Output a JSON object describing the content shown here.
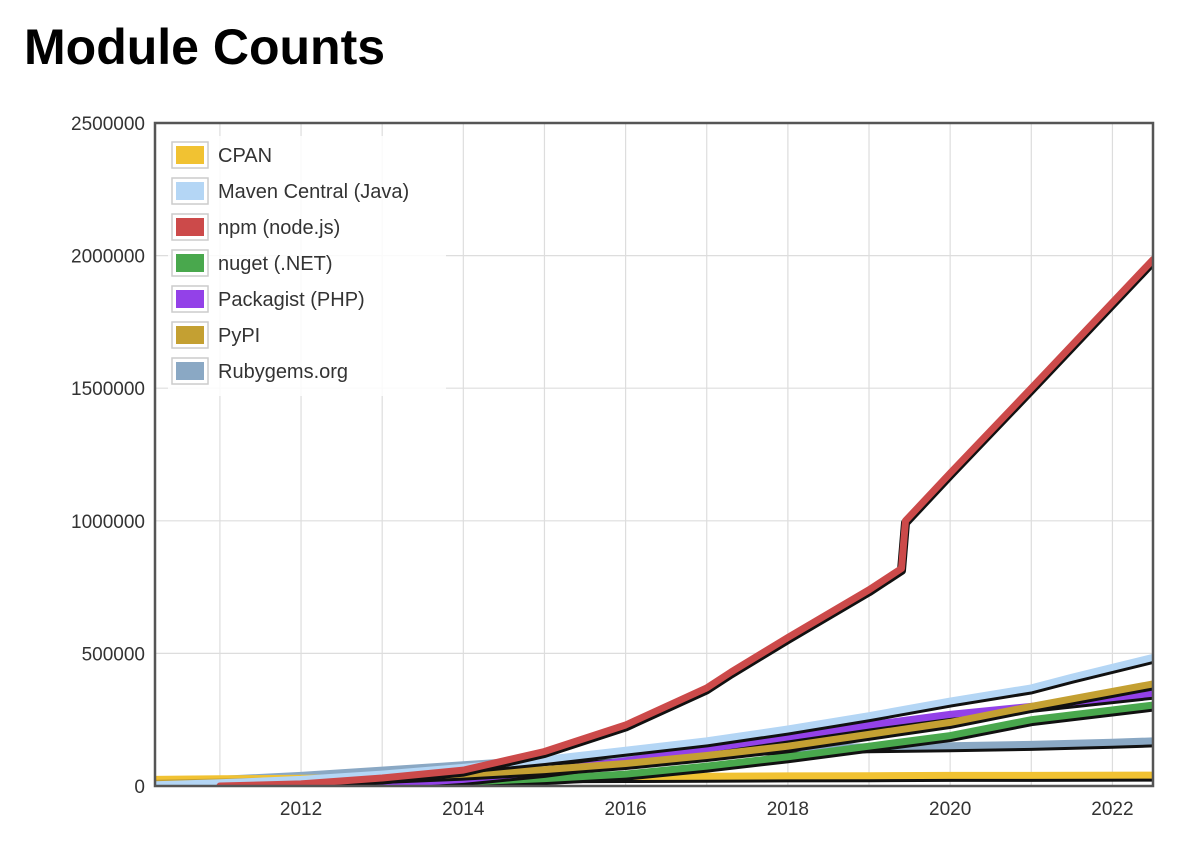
{
  "chart_data": {
    "type": "line",
    "title": "Module Counts",
    "xlabel": "",
    "ylabel": "",
    "xlim": [
      2010.2,
      2022.5
    ],
    "ylim": [
      0,
      2500000
    ],
    "x_ticks": [
      "2012",
      "2014",
      "2016",
      "2018",
      "2020",
      "2022"
    ],
    "y_ticks": [
      "0",
      "500000",
      "1000000",
      "1500000",
      "2000000",
      "2500000"
    ],
    "grid": true,
    "legend_position": "top-left",
    "series": [
      {
        "name": "CPAN",
        "color": "#f1c232",
        "points": [
          [
            2010.2,
            25000
          ],
          [
            2011,
            27000
          ],
          [
            2012,
            29000
          ],
          [
            2013,
            31000
          ],
          [
            2014,
            33000
          ],
          [
            2015,
            35000
          ],
          [
            2016,
            36000
          ],
          [
            2017,
            37000
          ],
          [
            2018,
            38000
          ],
          [
            2019,
            39000
          ],
          [
            2020,
            40000
          ],
          [
            2021,
            40000
          ],
          [
            2022.5,
            41000
          ]
        ]
      },
      {
        "name": "Maven Central (Java)",
        "color": "#b4d6f5",
        "points": [
          [
            2010.2,
            5000
          ],
          [
            2011,
            12000
          ],
          [
            2012,
            25000
          ],
          [
            2013,
            45000
          ],
          [
            2014,
            70000
          ],
          [
            2015,
            100000
          ],
          [
            2016,
            135000
          ],
          [
            2017,
            170000
          ],
          [
            2018,
            215000
          ],
          [
            2019,
            265000
          ],
          [
            2020,
            320000
          ],
          [
            2021,
            370000
          ],
          [
            2021.5,
            410000
          ],
          [
            2022.5,
            485000
          ]
        ]
      },
      {
        "name": "npm (node.js)",
        "color": "#cc4a4a",
        "points": [
          [
            2011,
            0
          ],
          [
            2012,
            8000
          ],
          [
            2013,
            30000
          ],
          [
            2014,
            60000
          ],
          [
            2014.5,
            95000
          ],
          [
            2015,
            130000
          ],
          [
            2016,
            230000
          ],
          [
            2017,
            370000
          ],
          [
            2017.3,
            430000
          ],
          [
            2018,
            560000
          ],
          [
            2019,
            740000
          ],
          [
            2019.4,
            820000
          ],
          [
            2019.45,
            1000000
          ],
          [
            2020,
            1180000
          ],
          [
            2021,
            1500000
          ],
          [
            2022.5,
            1985000
          ]
        ]
      },
      {
        "name": "nuget (.NET)",
        "color": "#49a84d",
        "points": [
          [
            2011.5,
            0
          ],
          [
            2012,
            3000
          ],
          [
            2013,
            8000
          ],
          [
            2014,
            15000
          ],
          [
            2015,
            28000
          ],
          [
            2016,
            45000
          ],
          [
            2017,
            75000
          ],
          [
            2018,
            110000
          ],
          [
            2019,
            150000
          ],
          [
            2020,
            190000
          ],
          [
            2021,
            250000
          ],
          [
            2022.5,
            305000
          ]
        ]
      },
      {
        "name": "Packagist (PHP)",
        "color": "#9341e8",
        "points": [
          [
            2012.5,
            0
          ],
          [
            2013,
            5000
          ],
          [
            2014,
            25000
          ],
          [
            2015,
            55000
          ],
          [
            2016,
            95000
          ],
          [
            2017,
            140000
          ],
          [
            2018,
            185000
          ],
          [
            2019,
            230000
          ],
          [
            2020,
            270000
          ],
          [
            2021,
            300000
          ],
          [
            2022.5,
            350000
          ]
        ]
      },
      {
        "name": "PyPI",
        "color": "#c4a032",
        "points": [
          [
            2010.2,
            10000
          ],
          [
            2011,
            15000
          ],
          [
            2012,
            22000
          ],
          [
            2013,
            32000
          ],
          [
            2014,
            45000
          ],
          [
            2015,
            62000
          ],
          [
            2016,
            85000
          ],
          [
            2017,
            115000
          ],
          [
            2018,
            150000
          ],
          [
            2019,
            195000
          ],
          [
            2020,
            240000
          ],
          [
            2021,
            300000
          ],
          [
            2022.5,
            385000
          ]
        ]
      },
      {
        "name": "Rubygems.org",
        "color": "#8aa8c4",
        "points": [
          [
            2010.2,
            0
          ],
          [
            2010.5,
            15000
          ],
          [
            2011,
            25000
          ],
          [
            2012,
            40000
          ],
          [
            2013,
            60000
          ],
          [
            2014,
            80000
          ],
          [
            2015,
            100000
          ],
          [
            2016,
            118000
          ],
          [
            2017,
            132000
          ],
          [
            2018,
            142000
          ],
          [
            2019,
            148000
          ],
          [
            2020,
            152000
          ],
          [
            2021,
            157000
          ],
          [
            2022,
            165000
          ],
          [
            2022.5,
            170000
          ]
        ]
      }
    ]
  }
}
